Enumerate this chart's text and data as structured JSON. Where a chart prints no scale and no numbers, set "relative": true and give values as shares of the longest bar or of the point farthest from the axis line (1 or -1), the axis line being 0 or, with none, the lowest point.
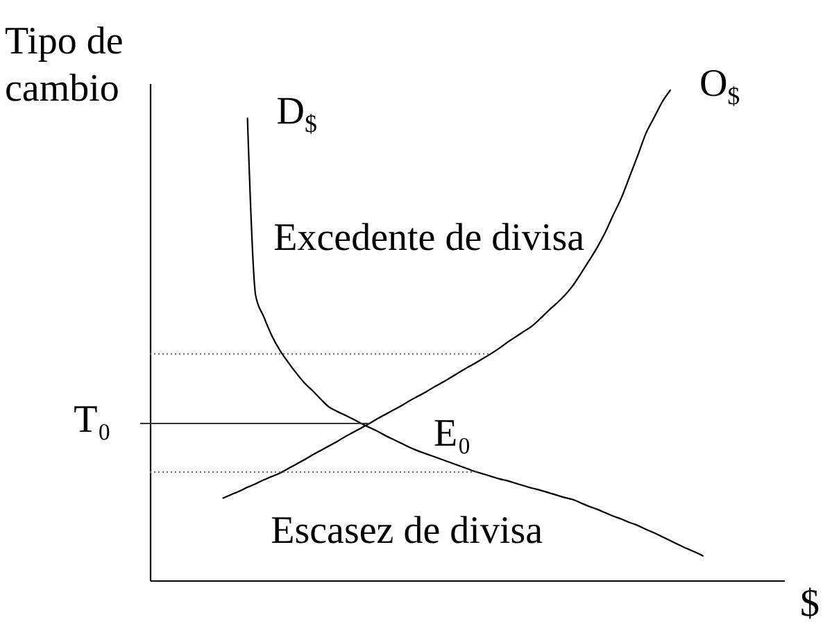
{
  "chart_data": {
    "type": "line",
    "relative": true,
    "ylabel": "Tipo de cambio",
    "xlabel": "$",
    "tick_labels": false,
    "grid": false,
    "categories": [
      null,
      null,
      null,
      null,
      null,
      null,
      null,
      null,
      null,
      null,
      null,
      null,
      null,
      null,
      null,
      null,
      null,
      null,
      null,
      null,
      null,
      null,
      null,
      null,
      null,
      null,
      null,
      null,
      null,
      null,
      null,
      null,
      null,
      null,
      null,
      null,
      null,
      null,
      null,
      null,
      null,
      null,
      null,
      null,
      null,
      null,
      null,
      null,
      null,
      null,
      null,
      null,
      null,
      null,
      null,
      null,
      null,
      null,
      null,
      null,
      null,
      null,
      null,
      null,
      null,
      null,
      null,
      null,
      null,
      null,
      null,
      null,
      null,
      null,
      null,
      null,
      null,
      null,
      null
    ],
    "series": [
      {
        "name": "D$_{$}$",
        "color": "#000000",
        "values": [
          null,
          null,
          null,
          null,
          null,
          null,
          null,
          null,
          null,
          null,
          null,
          null,
          0.943,
          0.582,
          0.538,
          0.499,
          0.469,
          0.445,
          0.423,
          0.403,
          0.387,
          0.37,
          0.354,
          0.345,
          0.337,
          0.329,
          0.32,
          0.312,
          0.304,
          0.295,
          0.287,
          0.279,
          0.271,
          0.264,
          0.258,
          0.252,
          0.246,
          0.24,
          0.234,
          0.228,
          0.222,
          0.217,
          0.212,
          0.207,
          0.203,
          0.198,
          0.193,
          0.188,
          0.184,
          0.179,
          0.174,
          0.169,
          0.165,
          0.158,
          0.151,
          0.145,
          0.138,
          0.131,
          0.125,
          0.118,
          0.112,
          0.104,
          0.097,
          0.089,
          0.081,
          0.073,
          0.065,
          0.058,
          0.05,
          null,
          null,
          null,
          null,
          null,
          null,
          null,
          null,
          null,
          null
        ]
      },
      {
        "name": "O$_{$}$",
        "color": "#000000",
        "values": [
          null,
          null,
          null,
          null,
          null,
          null,
          null,
          null,
          null,
          0.168,
          0.175,
          0.182,
          0.19,
          0.197,
          0.205,
          0.212,
          0.219,
          0.228,
          0.237,
          0.246,
          0.256,
          0.265,
          0.274,
          0.283,
          0.293,
          0.302,
          0.311,
          0.32,
          0.33,
          0.339,
          0.348,
          0.357,
          0.367,
          0.376,
          0.385,
          0.395,
          0.404,
          0.414,
          0.424,
          0.434,
          0.443,
          0.453,
          0.463,
          0.474,
          0.486,
          0.497,
          0.508,
          0.519,
          0.534,
          0.55,
          0.565,
          0.581,
          0.601,
          0.626,
          0.652,
          0.679,
          0.71,
          0.746,
          0.781,
          0.824,
          0.867,
          0.912,
          0.944,
          0.976,
          1.0,
          null,
          null,
          null,
          null,
          null,
          null,
          null,
          null,
          null,
          null,
          null,
          null,
          null,
          null
        ]
      }
    ],
    "ref_lines": [
      {
        "axis": "y",
        "value": 0.32,
        "label": "T₀",
        "color": "#333333"
      },
      {
        "axis": "y",
        "value": 0.462,
        "line_style": "dotted",
        "color": "#666666"
      },
      {
        "axis": "y",
        "value": 0.221,
        "line_style": "dotted",
        "color": "#666666"
      }
    ],
    "annotations": [
      "Excedente de divisa",
      "E₀",
      "Escasez de divisa"
    ]
  }
}
